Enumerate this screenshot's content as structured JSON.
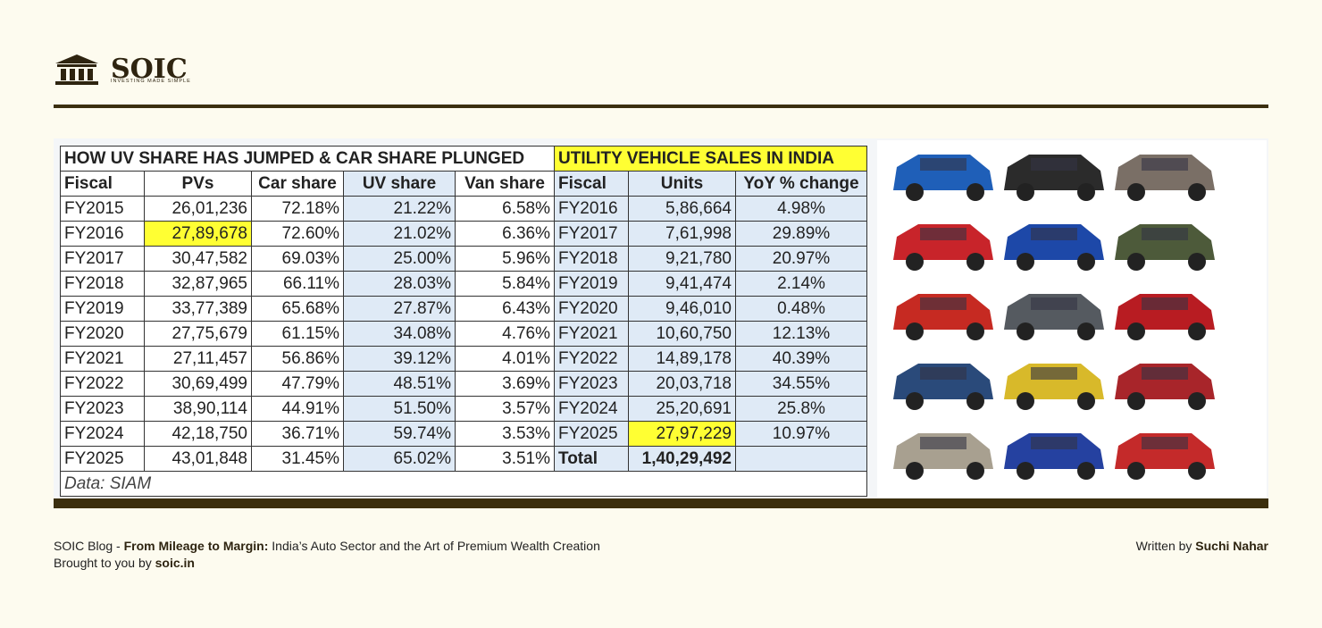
{
  "header": {
    "logo": "SOIC",
    "tagline": "INVESTING MADE SIMPLE"
  },
  "table": {
    "titles": [
      "HOW UV SHARE HAS JUMPED & CAR SHARE PLUNGED",
      "UTILITY VEHICLE SALES IN INDIA"
    ],
    "headers": [
      "Fiscal",
      "PVs",
      "Car share",
      "UV share",
      "Van share",
      "Fiscal",
      "Units",
      "YoY % change"
    ],
    "rows": [
      [
        "FY2015",
        "26,01,236",
        "72.18%",
        "21.22%",
        "6.58%",
        "FY2016",
        "5,86,664",
        "4.98%"
      ],
      [
        "FY2016",
        "27,89,678",
        "72.60%",
        "21.02%",
        "6.36%",
        "FY2017",
        "7,61,998",
        "29.89%"
      ],
      [
        "FY2017",
        "30,47,582",
        "69.03%",
        "25.00%",
        "5.96%",
        "FY2018",
        "9,21,780",
        "20.97%"
      ],
      [
        "FY2018",
        "32,87,965",
        "66.11%",
        "28.03%",
        "5.84%",
        "FY2019",
        "9,41,474",
        "2.14%"
      ],
      [
        "FY2019",
        "33,77,389",
        "65.68%",
        "27.87%",
        "6.43%",
        "FY2020",
        "9,46,010",
        "0.48%"
      ],
      [
        "FY2020",
        "27,75,679",
        "61.15%",
        "34.08%",
        "4.76%",
        "FY2021",
        "10,60,750",
        "12.13%"
      ],
      [
        "FY2021",
        "27,11,457",
        "56.86%",
        "39.12%",
        "4.01%",
        "FY2022",
        "14,89,178",
        "40.39%"
      ],
      [
        "FY2022",
        "30,69,499",
        "47.79%",
        "48.51%",
        "3.69%",
        "FY2023",
        "20,03,718",
        "34.55%"
      ],
      [
        "FY2023",
        "38,90,114",
        "44.91%",
        "51.50%",
        "3.57%",
        "FY2024",
        "25,20,691",
        "25.8%"
      ],
      [
        "FY2024",
        "42,18,750",
        "36.71%",
        "59.74%",
        "3.53%",
        "FY2025",
        "27,97,229",
        "10.97%"
      ],
      [
        "FY2025",
        "43,01,848",
        "31.45%",
        "65.02%",
        "3.51%",
        "Total",
        "1,40,29,492"
      ]
    ],
    "source": "Data: SIAM",
    "highlights": [
      {
        "row": 1,
        "col": 1
      },
      {
        "row": 9,
        "col": 6
      }
    ],
    "highlight_color": "#ffff33"
  },
  "footer": {
    "blog_prefix": "SOIC Blog - ",
    "blog_title": "From Mileage to Margin:",
    "blog_rest": " India’s Auto Sector and the Art of Premium Wealth Creation",
    "brought_prefix": "Brought to you by ",
    "brought_site": "soic.in",
    "author_prefix": "Written by ",
    "author": "Suchi Nahar"
  }
}
